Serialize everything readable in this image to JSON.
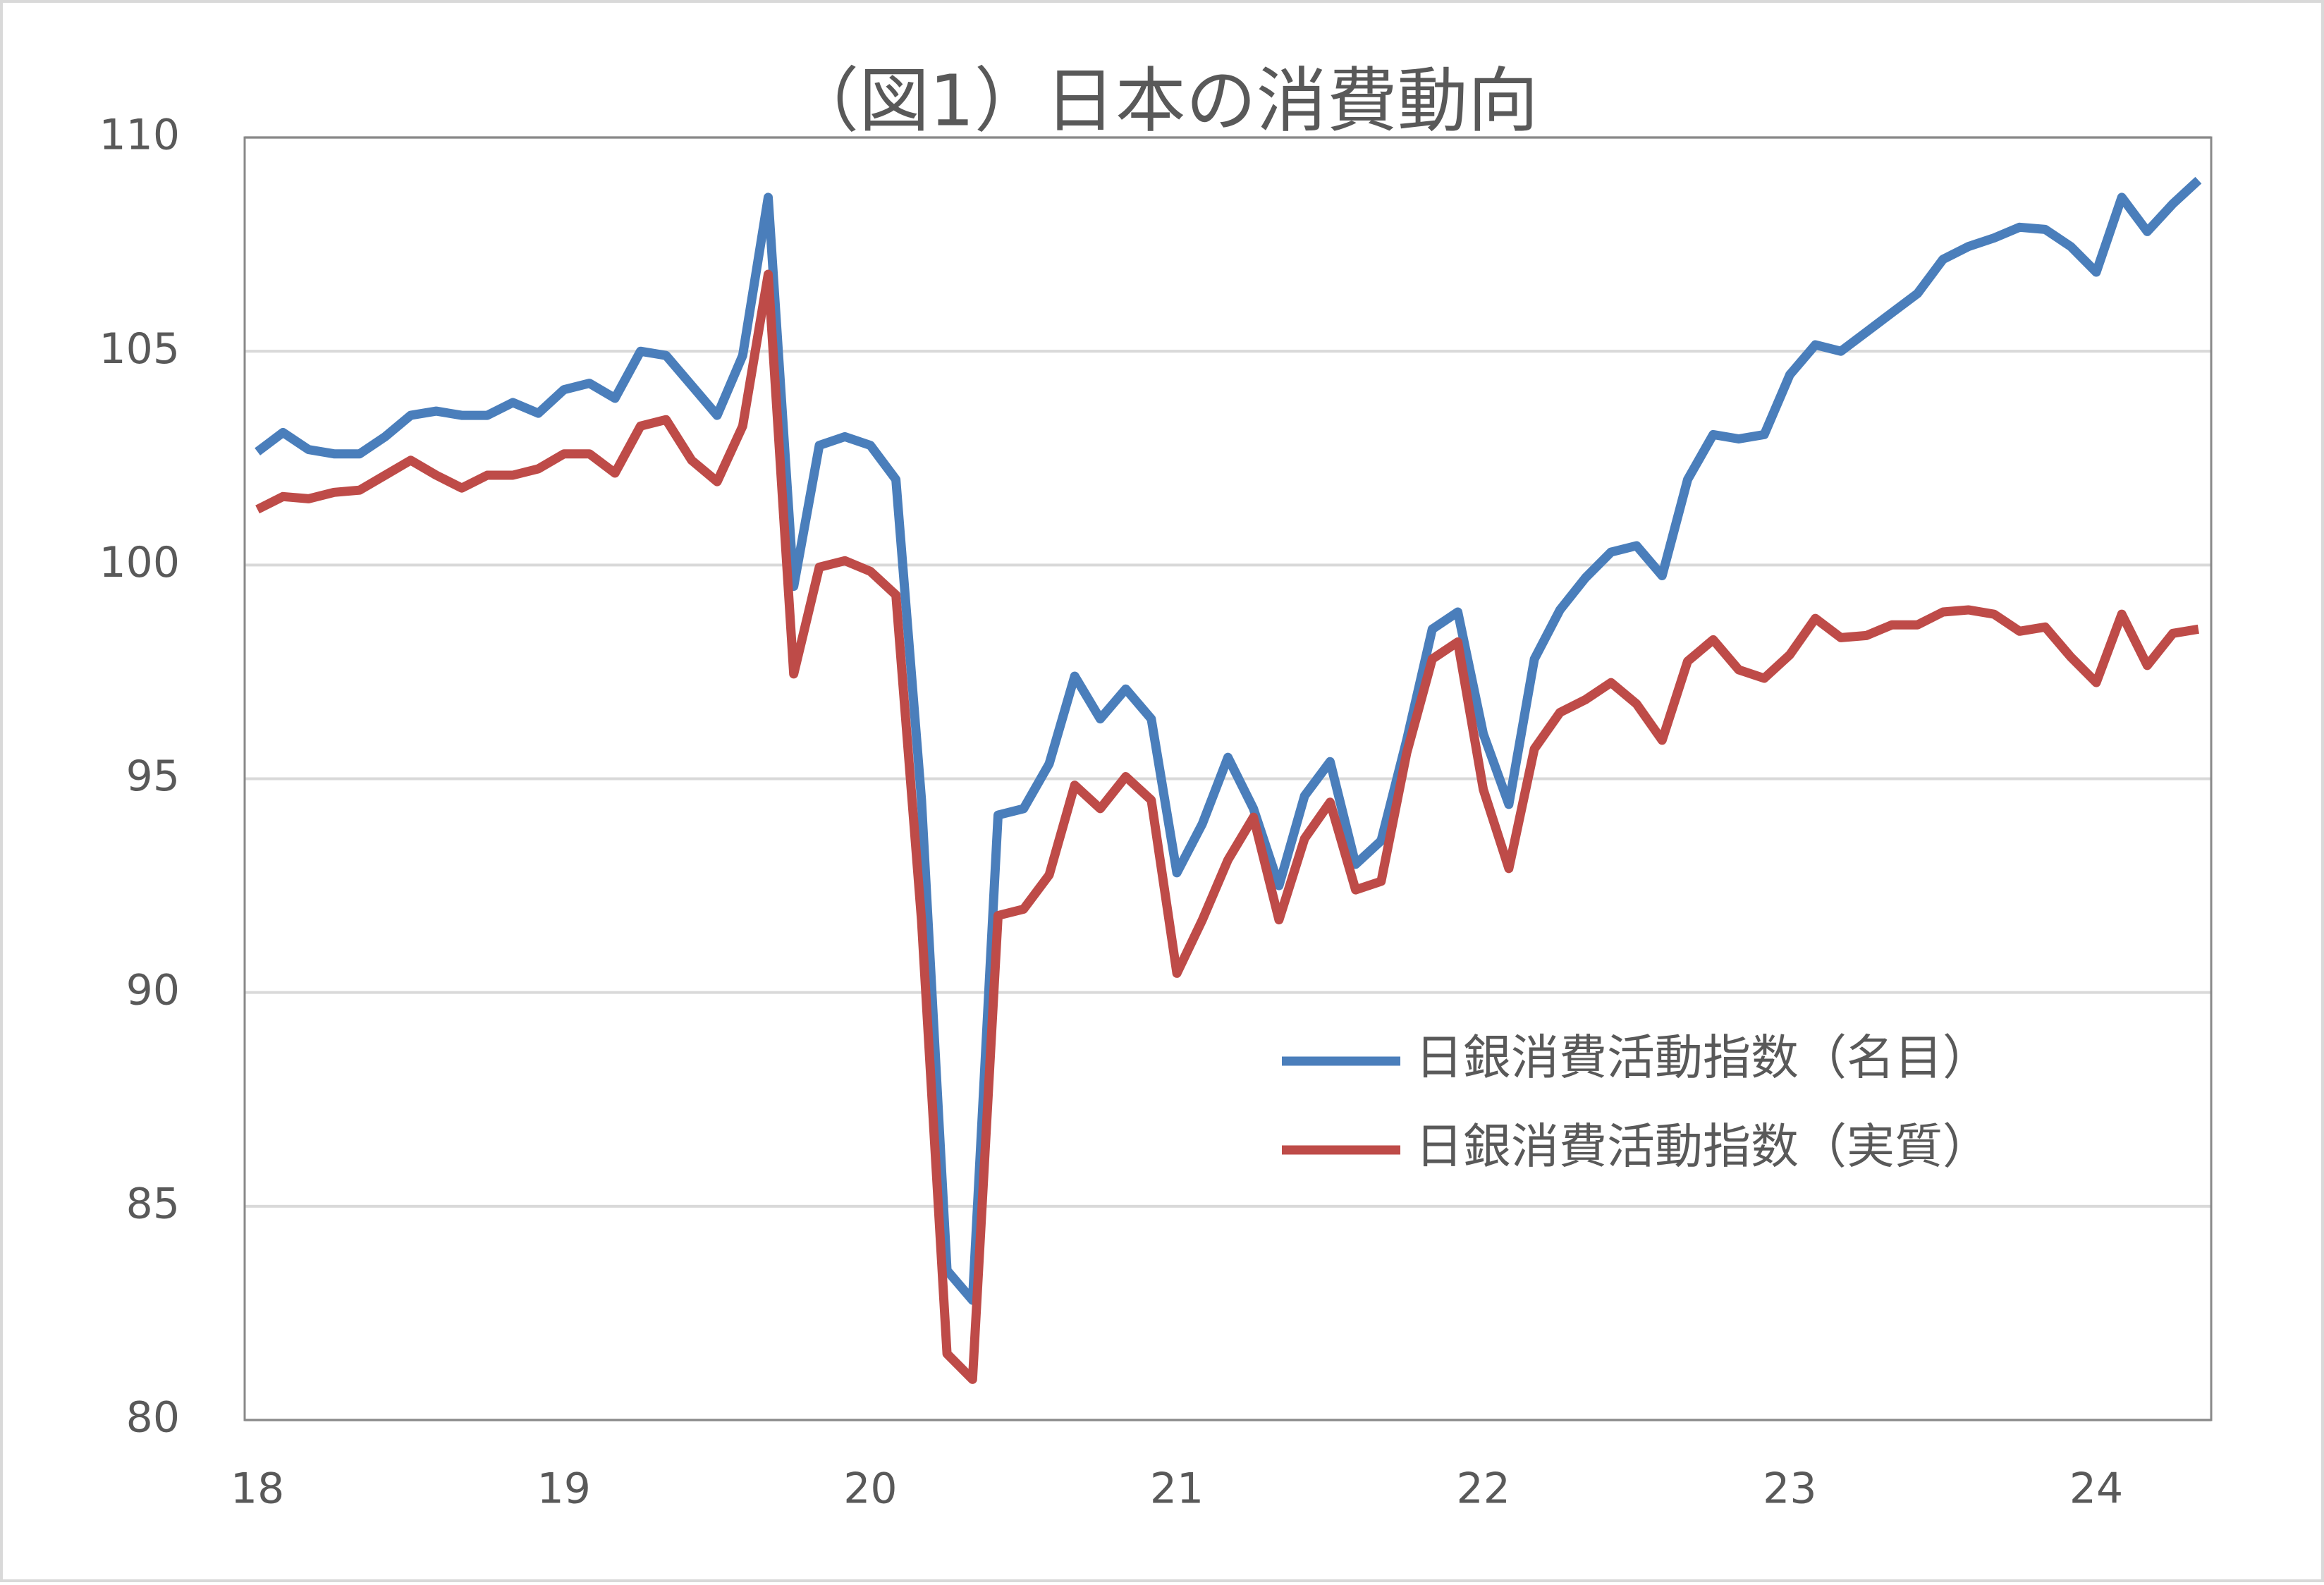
{
  "chart_data": {
    "type": "line",
    "title": "（図1）日本の消費動向",
    "categories": [
      "18",
      null,
      null,
      null,
      null,
      null,
      null,
      null,
      null,
      null,
      null,
      null,
      "19",
      null,
      null,
      null,
      null,
      null,
      null,
      null,
      null,
      null,
      null,
      null,
      "20",
      null,
      null,
      null,
      null,
      null,
      null,
      null,
      null,
      null,
      null,
      null,
      "21",
      null,
      null,
      null,
      null,
      null,
      null,
      null,
      null,
      null,
      null,
      null,
      "22",
      null,
      null,
      null,
      null,
      null,
      null,
      null,
      null,
      null,
      null,
      null,
      "23",
      null,
      null,
      null,
      null,
      null,
      null,
      null,
      null,
      null,
      null,
      null,
      "24",
      null,
      null,
      null,
      null
    ],
    "series": [
      {
        "name": "日銀消費活動指数（名目）",
        "color": "#4a7ebb",
        "values": [
          102.65,
          103.1,
          102.7,
          102.6,
          102.6,
          103.0,
          103.5,
          103.6,
          103.5,
          103.5,
          103.8,
          103.55,
          104.1,
          104.25,
          103.9,
          105.0,
          104.9,
          104.2,
          103.5,
          104.9,
          108.6,
          99.5,
          102.8,
          103.0,
          102.8,
          102.0,
          94.5,
          83.5,
          82.8,
          94.15,
          94.3,
          95.35,
          97.4,
          96.4,
          97.1,
          96.4,
          92.8,
          93.95,
          95.5,
          94.3,
          92.5,
          94.6,
          95.4,
          93.0,
          93.55,
          95.9,
          98.5,
          98.9,
          96.05,
          94.4,
          97.8,
          98.95,
          99.7,
          100.3,
          100.45,
          99.75,
          102.0,
          103.05,
          102.95,
          103.05,
          104.45,
          105.15,
          105.0,
          105.45,
          105.9,
          106.35,
          107.15,
          107.45,
          107.65,
          107.9,
          107.85,
          107.45,
          106.85,
          108.6,
          107.8,
          108.45,
          109.0
        ]
      },
      {
        "name": "日銀消費活動指数（実質）",
        "color": "#be4b48",
        "values": [
          101.3,
          101.6,
          101.55,
          101.7,
          101.75,
          102.1,
          102.45,
          102.1,
          101.8,
          102.1,
          102.1,
          102.25,
          102.6,
          102.6,
          102.15,
          103.25,
          103.4,
          102.45,
          101.95,
          103.25,
          106.8,
          97.45,
          99.95,
          100.1,
          99.85,
          99.3,
          91.7,
          81.55,
          80.95,
          91.8,
          91.95,
          92.75,
          94.85,
          94.3,
          95.05,
          94.5,
          90.45,
          91.7,
          93.1,
          94.1,
          91.7,
          93.6,
          94.45,
          92.4,
          92.6,
          95.6,
          97.8,
          98.2,
          94.75,
          92.9,
          95.7,
          96.55,
          96.85,
          97.25,
          96.75,
          95.9,
          97.75,
          98.25,
          97.55,
          97.35,
          97.9,
          98.75,
          98.3,
          98.35,
          98.6,
          98.6,
          98.9,
          98.95,
          98.85,
          98.45,
          98.55,
          97.85,
          97.25,
          98.85,
          97.65,
          98.4,
          98.5
        ]
      }
    ],
    "ylim": [
      80,
      110
    ],
    "yticks": [
      80,
      85,
      90,
      95,
      100,
      105,
      110
    ],
    "grid": true
  }
}
